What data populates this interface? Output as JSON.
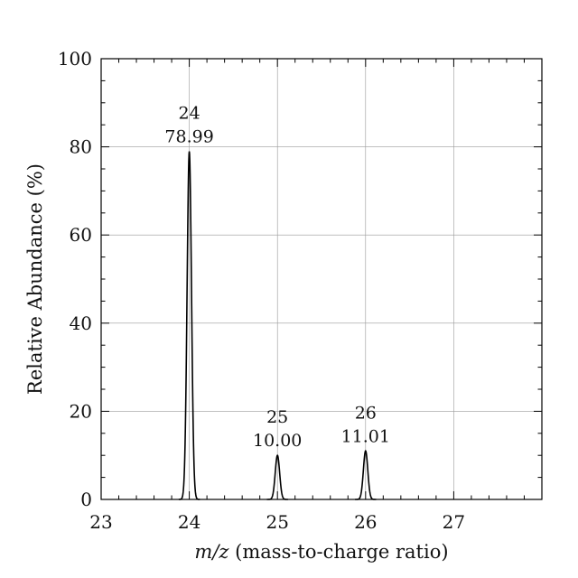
{
  "chart_data": {
    "type": "line",
    "title": "",
    "xlabel_italic": "m/z",
    "xlabel_rest": " (mass-to-charge ratio)",
    "ylabel": "Relative Abundance (%)",
    "xlim": [
      23,
      28
    ],
    "ylim": [
      0,
      100
    ],
    "x_ticks": [
      "23",
      "24",
      "25",
      "26",
      "27"
    ],
    "y_ticks": [
      "0",
      "20",
      "40",
      "60",
      "80",
      "100"
    ],
    "grid": true,
    "peaks": [
      {
        "mass": 24,
        "abundance": 78.99,
        "mass_label": "24",
        "abundance_label": "78.99"
      },
      {
        "mass": 25,
        "abundance": 10.0,
        "mass_label": "25",
        "abundance_label": "10.00"
      },
      {
        "mass": 26,
        "abundance": 11.01,
        "mass_label": "26",
        "abundance_label": "11.01"
      }
    ],
    "line_color": "#000000",
    "grid_color": "#9a9a9a"
  }
}
